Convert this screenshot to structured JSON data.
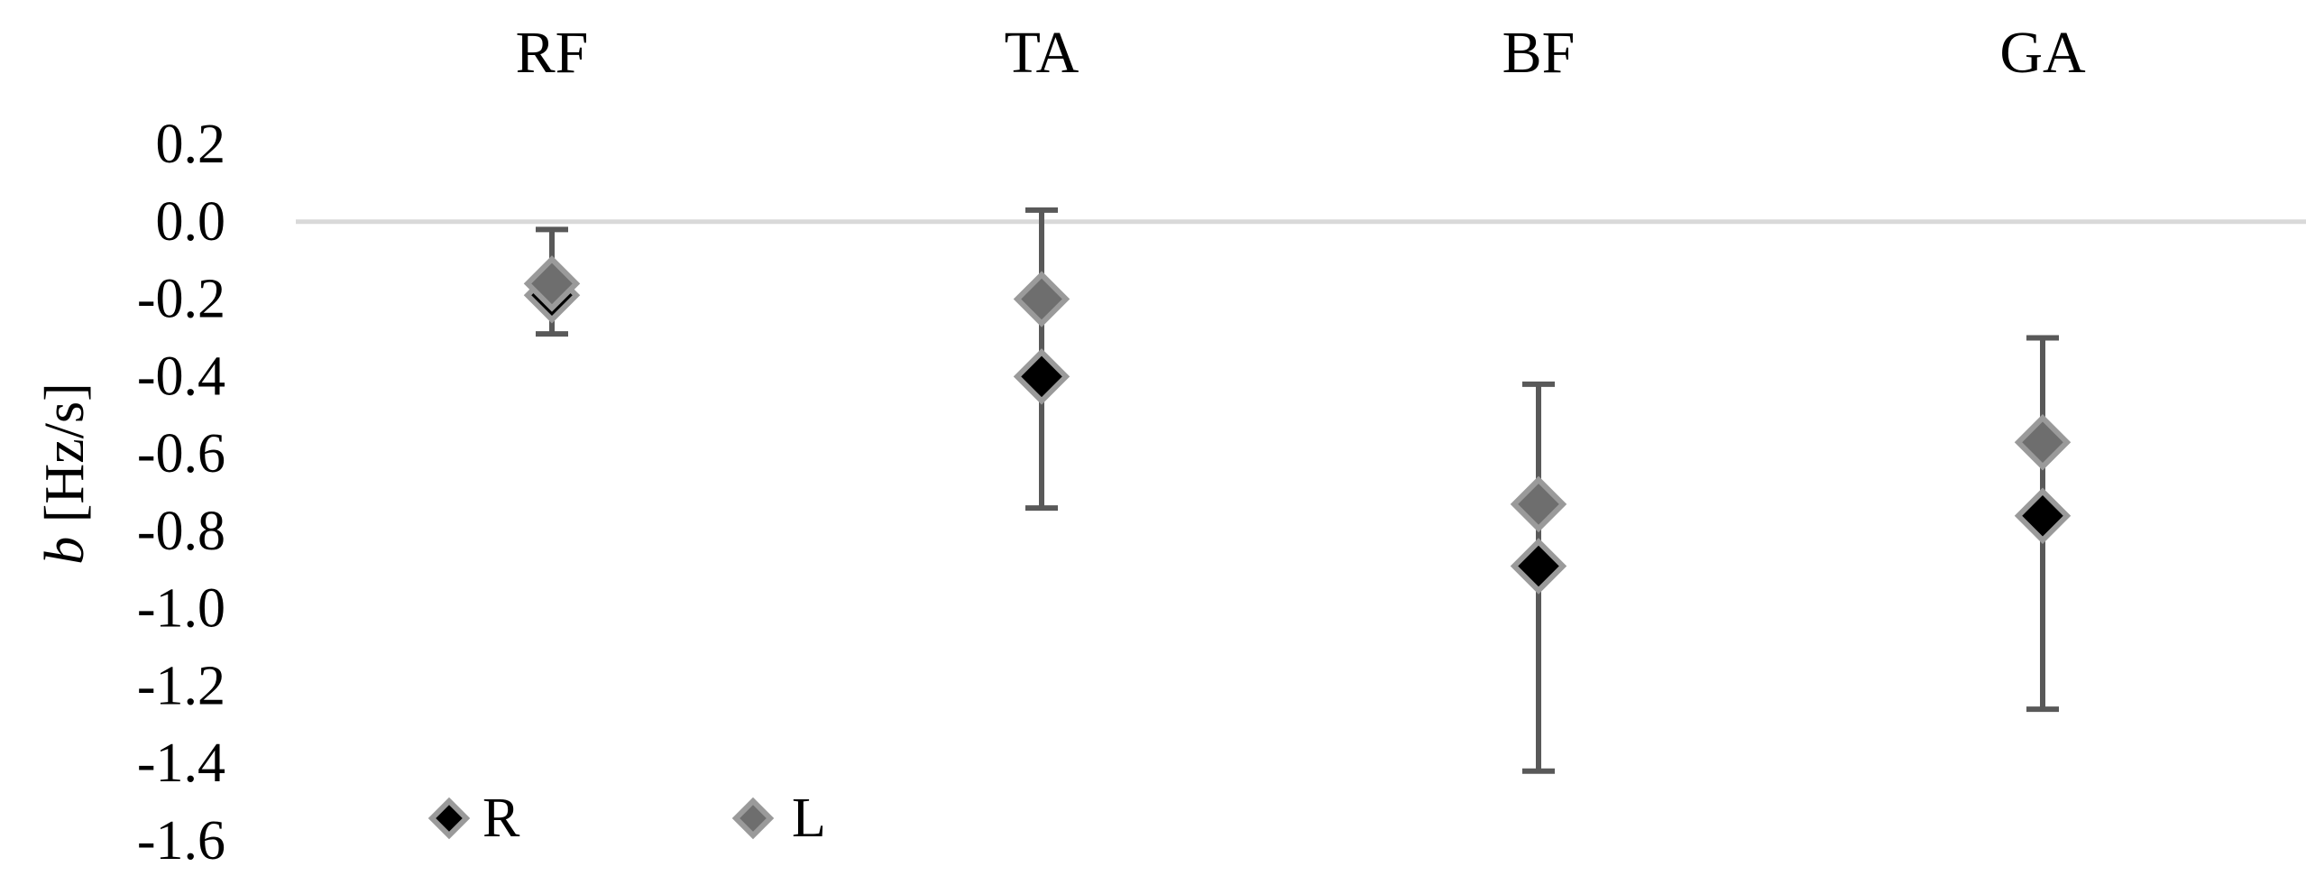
{
  "chart_data": {
    "type": "scatter",
    "categories": [
      "RF",
      "TA",
      "BF",
      "GA"
    ],
    "category_position": "top",
    "ylabel": {
      "prefix": "b",
      "unit": " [Hz/s]"
    },
    "ylim": [
      -1.6,
      0.2
    ],
    "y_ticks": [
      "0.2",
      "0.0",
      "-0.2",
      "-0.4",
      "-0.6",
      "-0.8",
      "-1.0",
      "-1.2",
      "-1.4",
      "-1.6"
    ],
    "zero_line": true,
    "grid": false,
    "legend_position": "bottom-left",
    "series": [
      {
        "name": "R",
        "values": [
          -0.19,
          -0.4,
          -0.89,
          -0.76
        ],
        "color": "#000000"
      },
      {
        "name": "L",
        "values": [
          -0.16,
          -0.2,
          -0.73,
          -0.57
        ],
        "color": "#6e6e6e",
        "error_bars": [
          [
            -0.29,
            -0.02
          ],
          [
            -0.74,
            0.03
          ],
          [
            -1.42,
            -0.42
          ],
          [
            -1.26,
            -0.3
          ]
        ]
      }
    ],
    "marker_outline": "#9a9a9a",
    "error_bar_color": "#595959",
    "zero_line_color": "#d9d9d9"
  }
}
